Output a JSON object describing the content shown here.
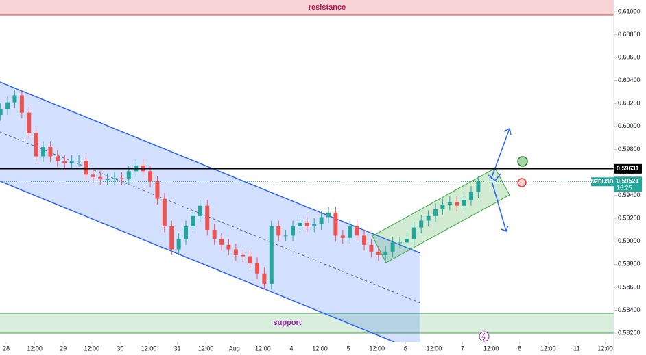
{
  "chart_data": {
    "type": "candlestick",
    "symbol": "NZDUSD",
    "resistance_label": "resistance",
    "support_label": "support",
    "up_color": "#26a69a",
    "down_color": "#ef5350",
    "level": {
      "value": 0.59631,
      "label": "0.59631"
    },
    "last_price": {
      "value": 0.59521,
      "label": "0.59521"
    },
    "countdown": "16:25",
    "x": [
      -0.2,
      0.05,
      0.3,
      0.55,
      0.8,
      1.05,
      1.3,
      1.55,
      1.8,
      2.05,
      2.3,
      2.55,
      2.8,
      3.05,
      3.3,
      3.55,
      3.8,
      4.05,
      4.3,
      4.55,
      4.8,
      5.05,
      5.3,
      5.55,
      5.8,
      6.05,
      6.3,
      6.55,
      6.8,
      7.05,
      7.3,
      7.55,
      7.8,
      8.05,
      8.3,
      8.55,
      8.8,
      9.05,
      9.3,
      9.55,
      9.8,
      10.05,
      10.3,
      10.55,
      10.8,
      11.05,
      11.3,
      11.55,
      11.8,
      12.05,
      12.3,
      12.55,
      12.8,
      13.05,
      13.3,
      13.55,
      13.8,
      14.05,
      14.3,
      14.55,
      14.8,
      15.05,
      15.3,
      15.55,
      15.8,
      16.05,
      16.3,
      16.55
    ],
    "open": [
      0.601,
      0.6015,
      0.6021,
      0.6027,
      0.6012,
      0.5994,
      0.5974,
      0.5982,
      0.5974,
      0.597,
      0.5968,
      0.597,
      0.597,
      0.5958,
      0.5956,
      0.5954,
      0.5954,
      0.5955,
      0.5954,
      0.5961,
      0.5966,
      0.5961,
      0.5952,
      0.5937,
      0.5913,
      0.5893,
      0.5902,
      0.5913,
      0.5922,
      0.5931,
      0.591,
      0.5902,
      0.5897,
      0.5893,
      0.5888,
      0.5887,
      0.5881,
      0.5872,
      0.5863,
      0.5913,
      0.5905,
      0.5905,
      0.5913,
      0.5916,
      0.5913,
      0.5915,
      0.5921,
      0.5925,
      0.5905,
      0.5903,
      0.5913,
      0.5905,
      0.5897,
      0.5891,
      0.5888,
      0.5891,
      0.5899,
      0.5899,
      0.5902,
      0.5912,
      0.5918,
      0.5922,
      0.5928,
      0.5932,
      0.5934,
      0.5931,
      0.5936,
      0.5943
    ],
    "high": [
      0.602,
      0.6026,
      0.6032,
      0.6032,
      0.6017,
      0.5999,
      0.5987,
      0.5987,
      0.5979,
      0.5975,
      0.5975,
      0.5975,
      0.5975,
      0.5963,
      0.5961,
      0.5959,
      0.596,
      0.596,
      0.5966,
      0.5971,
      0.5971,
      0.5966,
      0.5957,
      0.5942,
      0.5918,
      0.5907,
      0.5918,
      0.5927,
      0.5936,
      0.5936,
      0.5915,
      0.5907,
      0.5902,
      0.5898,
      0.5893,
      0.5892,
      0.5886,
      0.5877,
      0.5918,
      0.5918,
      0.591,
      0.5918,
      0.5921,
      0.5921,
      0.592,
      0.5926,
      0.593,
      0.593,
      0.591,
      0.5918,
      0.5918,
      0.591,
      0.5902,
      0.5896,
      0.5896,
      0.5904,
      0.5904,
      0.5907,
      0.5917,
      0.5923,
      0.5927,
      0.5933,
      0.5937,
      0.5939,
      0.5939,
      0.5941,
      0.5948,
      0.5957
    ],
    "low": [
      0.6005,
      0.601,
      0.6016,
      0.6007,
      0.5989,
      0.5969,
      0.5969,
      0.5969,
      0.5965,
      0.5963,
      0.5963,
      0.5965,
      0.5953,
      0.5951,
      0.5949,
      0.5949,
      0.5949,
      0.5949,
      0.5949,
      0.5956,
      0.5956,
      0.5947,
      0.5932,
      0.5908,
      0.5888,
      0.5888,
      0.5897,
      0.5908,
      0.5917,
      0.5905,
      0.5897,
      0.5892,
      0.5888,
      0.5883,
      0.5882,
      0.5876,
      0.5867,
      0.5858,
      0.5858,
      0.59,
      0.59,
      0.59,
      0.5908,
      0.5908,
      0.5908,
      0.591,
      0.5916,
      0.59,
      0.5898,
      0.5898,
      0.59,
      0.5892,
      0.5886,
      0.5883,
      0.5883,
      0.5886,
      0.5894,
      0.5894,
      0.5897,
      0.5907,
      0.5913,
      0.5917,
      0.5923,
      0.5927,
      0.5926,
      0.5926,
      0.5931,
      0.5938
    ],
    "close": [
      0.6015,
      0.6021,
      0.6027,
      0.6012,
      0.5994,
      0.5974,
      0.5982,
      0.5974,
      0.597,
      0.5968,
      0.597,
      0.597,
      0.5958,
      0.5956,
      0.5954,
      0.5954,
      0.5955,
      0.5954,
      0.5961,
      0.5966,
      0.5961,
      0.5952,
      0.5937,
      0.5913,
      0.5893,
      0.5902,
      0.5913,
      0.5922,
      0.5931,
      0.591,
      0.5902,
      0.5897,
      0.5893,
      0.5888,
      0.5887,
      0.5881,
      0.5872,
      0.5863,
      0.5913,
      0.5905,
      0.5905,
      0.5913,
      0.5916,
      0.5913,
      0.5915,
      0.5921,
      0.5925,
      0.5905,
      0.5903,
      0.5913,
      0.5905,
      0.5897,
      0.5891,
      0.5888,
      0.5891,
      0.5899,
      0.5899,
      0.5902,
      0.5912,
      0.5918,
      0.5922,
      0.5928,
      0.5932,
      0.5934,
      0.5931,
      0.5936,
      0.5943,
      0.5952
    ],
    "xlim": [
      -0.216,
      21.3
    ],
    "xticks": [
      {
        "value": 0,
        "label": "28"
      },
      {
        "value": 1,
        "label": "12:00"
      },
      {
        "value": 2,
        "label": "29"
      },
      {
        "value": 3,
        "label": "12:00"
      },
      {
        "value": 4,
        "label": "30"
      },
      {
        "value": 5,
        "label": "12:00"
      },
      {
        "value": 6,
        "label": "31"
      },
      {
        "value": 7,
        "label": "12:00"
      },
      {
        "value": 8,
        "label": "Aug"
      },
      {
        "value": 9,
        "label": "12:00"
      },
      {
        "value": 10,
        "label": "4"
      },
      {
        "value": 11,
        "label": "12:00"
      },
      {
        "value": 12,
        "label": "5"
      },
      {
        "value": 13,
        "label": "12:00"
      },
      {
        "value": 14,
        "label": "6"
      },
      {
        "value": 15,
        "label": "12:00"
      },
      {
        "value": 16,
        "label": "7"
      },
      {
        "value": 17,
        "label": "12:00"
      },
      {
        "value": 18,
        "label": "8"
      },
      {
        "value": 19,
        "label": "12:00"
      },
      {
        "value": 20,
        "label": "11"
      },
      {
        "value": 21,
        "label": "12:00"
      }
    ],
    "ylim": [
      0.58123,
      0.61101
    ],
    "yticks": [
      {
        "value": 0.582,
        "label": "0.58200"
      },
      {
        "value": 0.584,
        "label": "0.58400"
      },
      {
        "value": 0.586,
        "label": "0.58600"
      },
      {
        "value": 0.588,
        "label": "0.58800"
      },
      {
        "value": 0.59,
        "label": "0.59000"
      },
      {
        "value": 0.592,
        "label": "0.59200"
      },
      {
        "value": 0.594,
        "label": "0.59400"
      },
      {
        "value": 0.596,
        "label": "0.59600"
      },
      {
        "value": 0.598,
        "label": "0.59800"
      },
      {
        "value": 0.6,
        "label": "0.60000"
      },
      {
        "value": 0.602,
        "label": "0.60200"
      },
      {
        "value": 0.604,
        "label": "0.60400"
      },
      {
        "value": 0.606,
        "label": "0.60600"
      },
      {
        "value": 0.608,
        "label": "0.60800"
      },
      {
        "value": 0.61,
        "label": "0.61000"
      }
    ]
  }
}
